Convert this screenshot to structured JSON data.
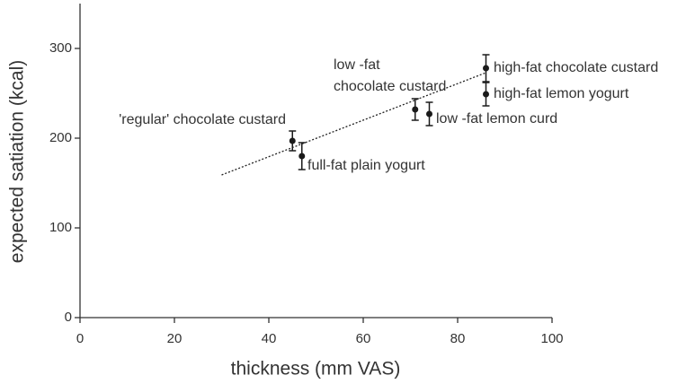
{
  "chart_data": {
    "type": "scatter",
    "xlabel": "thickness (mm VAS)",
    "ylabel": "expected satiation (kcal)",
    "xlim": [
      0,
      100
    ],
    "ylim": [
      0,
      350
    ],
    "xticks": [
      0,
      20,
      40,
      60,
      80,
      100
    ],
    "yticks": [
      0,
      100,
      200,
      300
    ],
    "color": "#1a1a1a",
    "x": [
      45,
      47,
      71,
      74,
      86,
      86
    ],
    "values": [
      197,
      180,
      232,
      227,
      278,
      249
    ],
    "errors": [
      11,
      15,
      12,
      13,
      15,
      13
    ],
    "labels": [
      [
        "'regular' chocolate custard"
      ],
      [
        "full-fat plain yogurt"
      ],
      [
        "low -fat",
        "chocolate custard"
      ],
      [
        "low -fat lemon curd"
      ],
      [
        "high-fat chocolate custard"
      ],
      [
        "high-fat lemon yogurt"
      ]
    ],
    "trendline": {
      "x": [
        30,
        86
      ],
      "y": [
        159,
        273
      ]
    }
  }
}
